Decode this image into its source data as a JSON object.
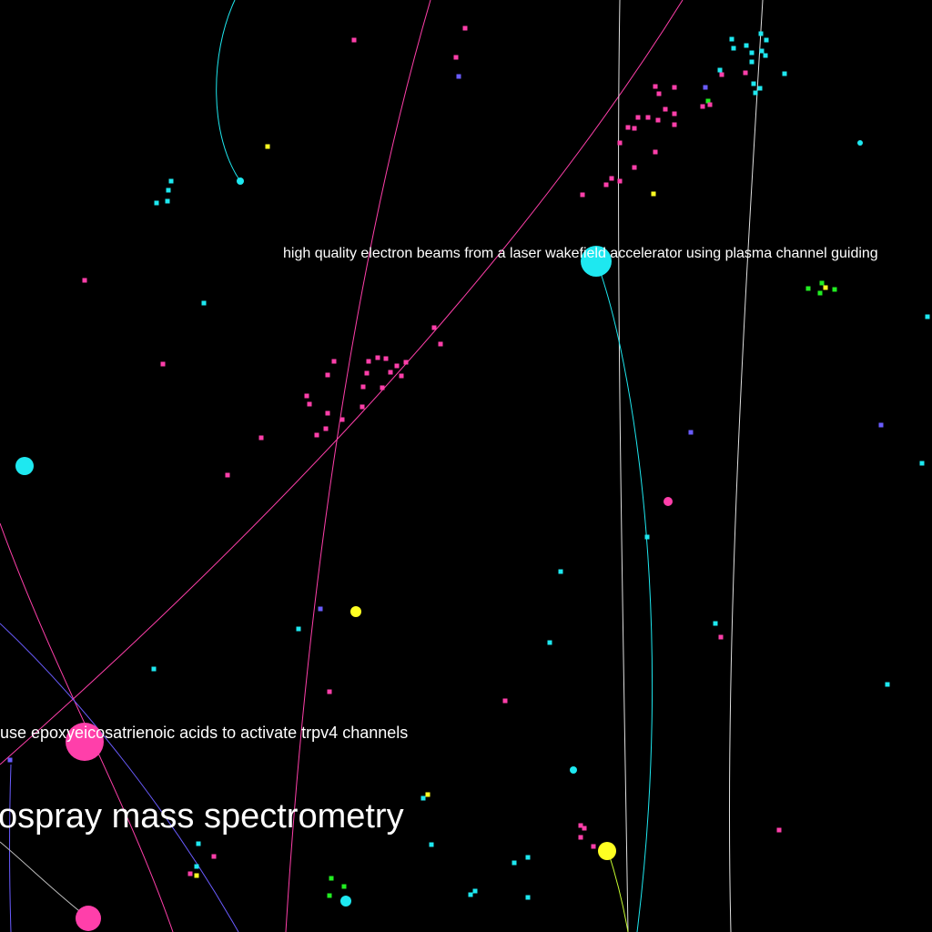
{
  "colors": {
    "background": "#000000",
    "cyan": "#1ee8f0",
    "pink": "#ff3faa",
    "yellow": "#ffff22",
    "blue": "#6a5cff",
    "green": "#22ee22",
    "label": "#ffffff"
  },
  "labels": {
    "laser": "high quality electron beams from a laser wakefield accelerator using plasma channel guiding",
    "trpv4": "use epoxyeicosatrienoic acids to activate trpv4 channels",
    "spectrometry": "ospray mass spectrometry"
  },
  "legend": []
}
